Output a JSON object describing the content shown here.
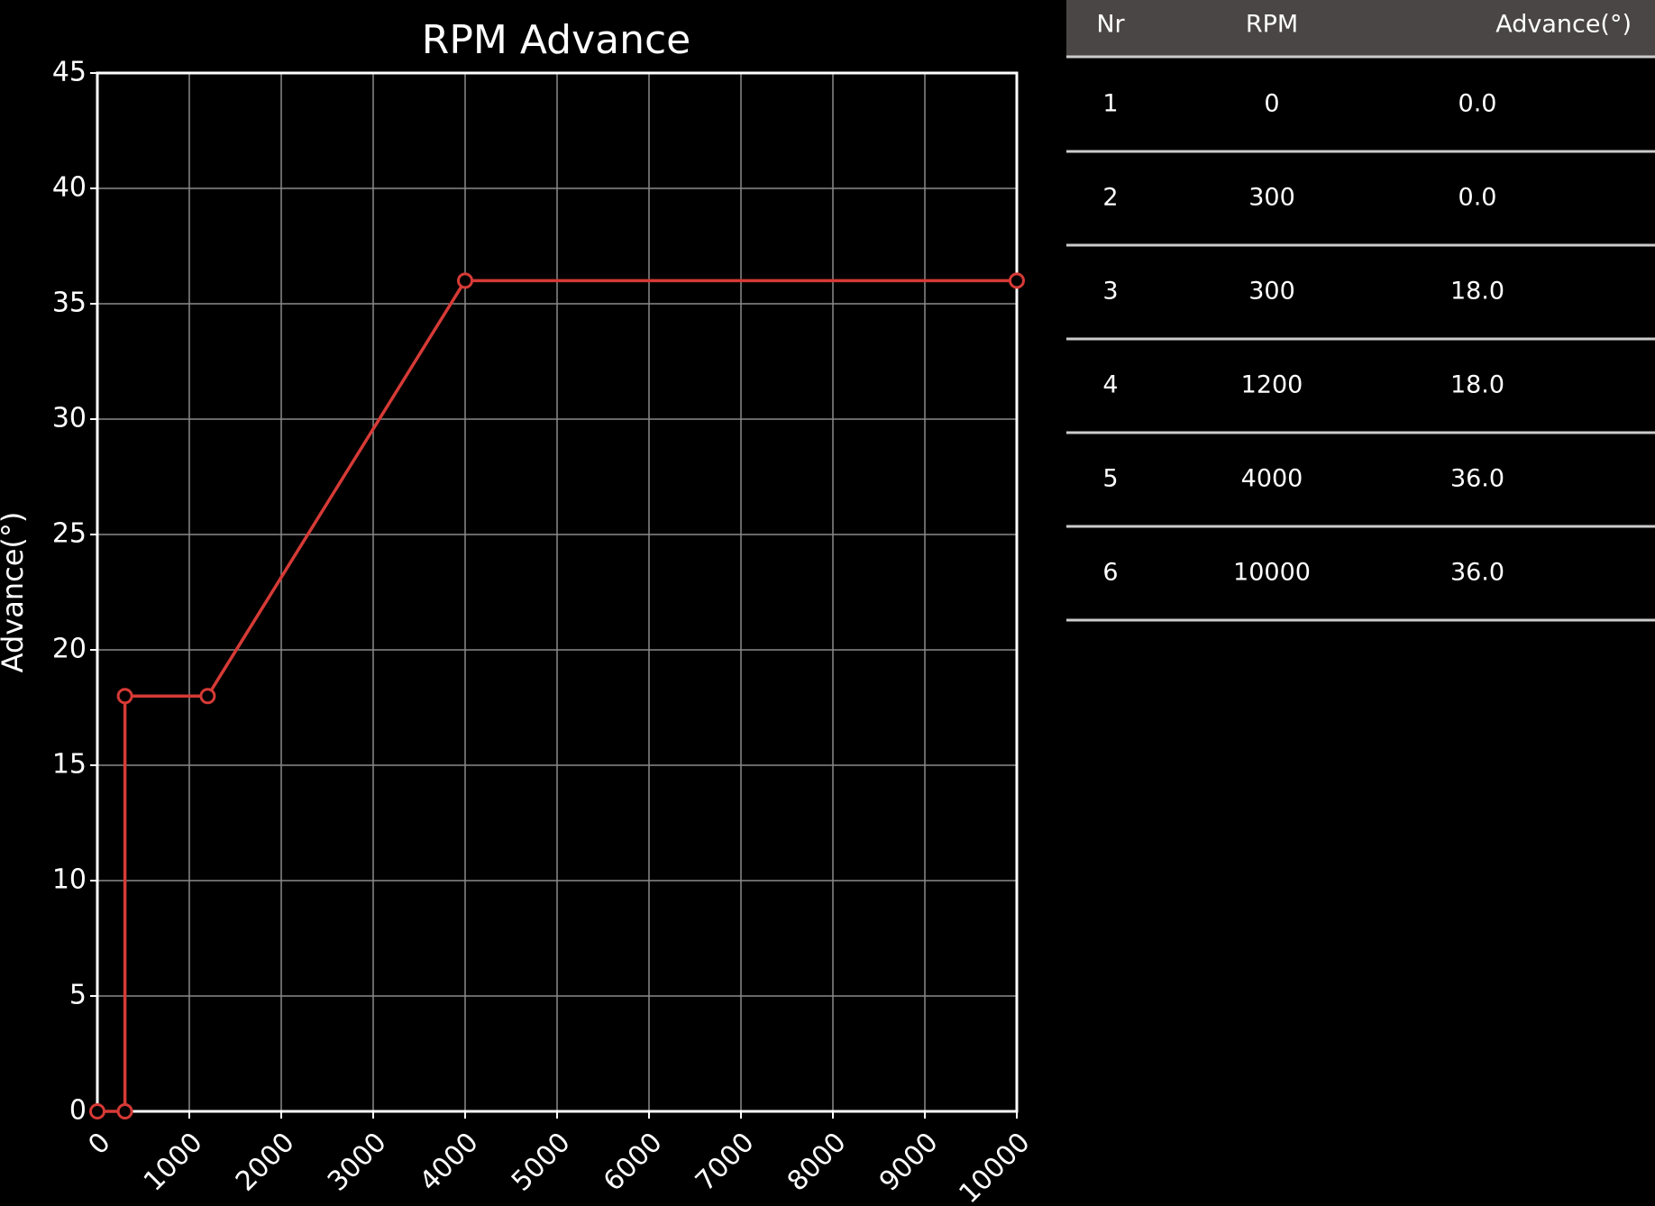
{
  "chart_data": {
    "type": "line",
    "title": "RPM Advance",
    "y_label": "Advance(°)",
    "x": [
      0,
      300,
      300,
      1200,
      4000,
      10000
    ],
    "values": [
      0,
      0,
      18,
      18,
      36,
      36
    ],
    "color": "#d63a36",
    "xlim": [
      0,
      10000
    ],
    "xticks": [
      0,
      1000,
      2000,
      3000,
      4000,
      5000,
      6000,
      7000,
      8000,
      9000,
      10000
    ],
    "ylim": [
      0,
      45
    ],
    "yticks": [
      0,
      5,
      10,
      15,
      20,
      25,
      30,
      35,
      40,
      45
    ],
    "grid": true
  },
  "table": {
    "columns": [
      "Nr",
      "RPM",
      "Advance(°)"
    ],
    "rows": [
      [
        1,
        0,
        "0.0"
      ],
      [
        2,
        300,
        "0.0"
      ],
      [
        3,
        300,
        "18.0"
      ],
      [
        4,
        1200,
        "18.0"
      ],
      [
        5,
        4000,
        "36.0"
      ],
      [
        6,
        10000,
        "36.0"
      ]
    ]
  }
}
